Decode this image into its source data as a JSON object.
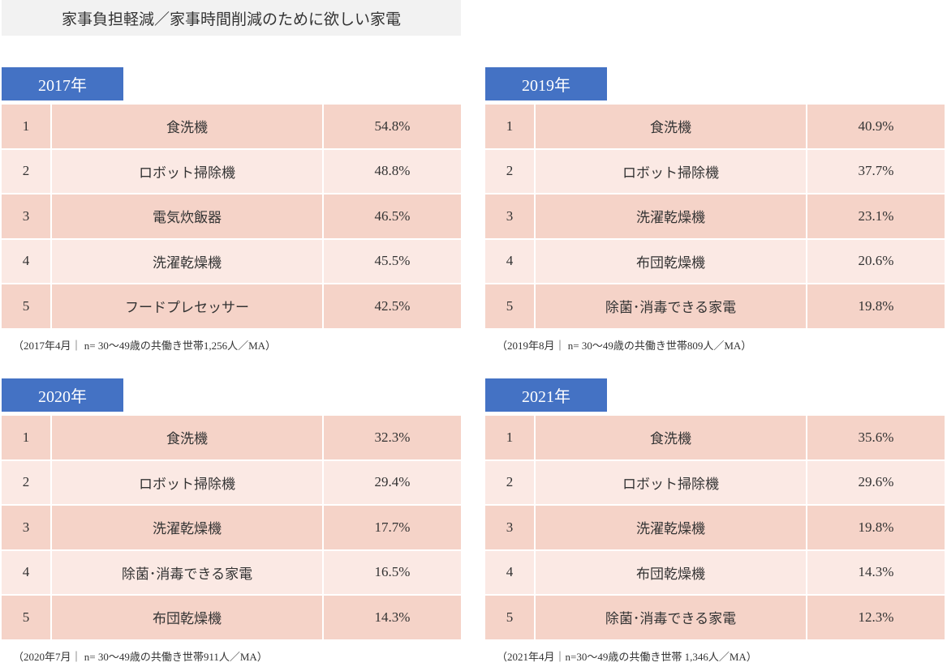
{
  "header": {
    "title": "家事負担軽減／家事時間削減のために欲しい家電"
  },
  "panels": [
    {
      "year": "2017年",
      "rows": [
        [
          "1",
          "食洗機",
          "54.8%"
        ],
        [
          "2",
          "ロボット掃除機",
          "48.8%"
        ],
        [
          "3",
          "電気炊飯器",
          "46.5%"
        ],
        [
          "4",
          "洗濯乾燥機",
          "45.5%"
        ],
        [
          "5",
          "フードプレセッサー",
          "42.5%"
        ]
      ],
      "note": "（2017年4月｜ n= 30～49歳の共働き世帯1,256人／MA）"
    },
    {
      "year": "2019年",
      "rows": [
        [
          "1",
          "食洗機",
          "40.9%"
        ],
        [
          "2",
          "ロボット掃除機",
          "37.7%"
        ],
        [
          "3",
          "洗濯乾燥機",
          "23.1%"
        ],
        [
          "4",
          "布団乾燥機",
          "20.6%"
        ],
        [
          "5",
          "除菌･消毒できる家電",
          "19.8%"
        ]
      ],
      "note": "（2019年8月｜ n= 30～49歳の共働き世帯809人／MA）"
    },
    {
      "year": "2020年",
      "rows": [
        [
          "1",
          "食洗機",
          "32.3%"
        ],
        [
          "2",
          "ロボット掃除機",
          "29.4%"
        ],
        [
          "3",
          "洗濯乾燥機",
          "17.7%"
        ],
        [
          "4",
          "除菌･消毒できる家電",
          "16.5%"
        ],
        [
          "5",
          "布団乾燥機",
          "14.3%"
        ]
      ],
      "note": "（2020年7月｜ n= 30～49歳の共働き世帯911人／MA）"
    },
    {
      "year": "2021年",
      "rows": [
        [
          "1",
          "食洗機",
          "35.6%"
        ],
        [
          "2",
          "ロボット掃除機",
          "29.6%"
        ],
        [
          "3",
          "洗濯乾燥機",
          "19.8%"
        ],
        [
          "4",
          "布団乾燥機",
          "14.3%"
        ],
        [
          "5",
          "除菌･消毒できる家電",
          "12.3%"
        ]
      ],
      "note": "（2021年4月｜n=30～49歳の共働き世帯 1,346人／MA）"
    }
  ]
}
